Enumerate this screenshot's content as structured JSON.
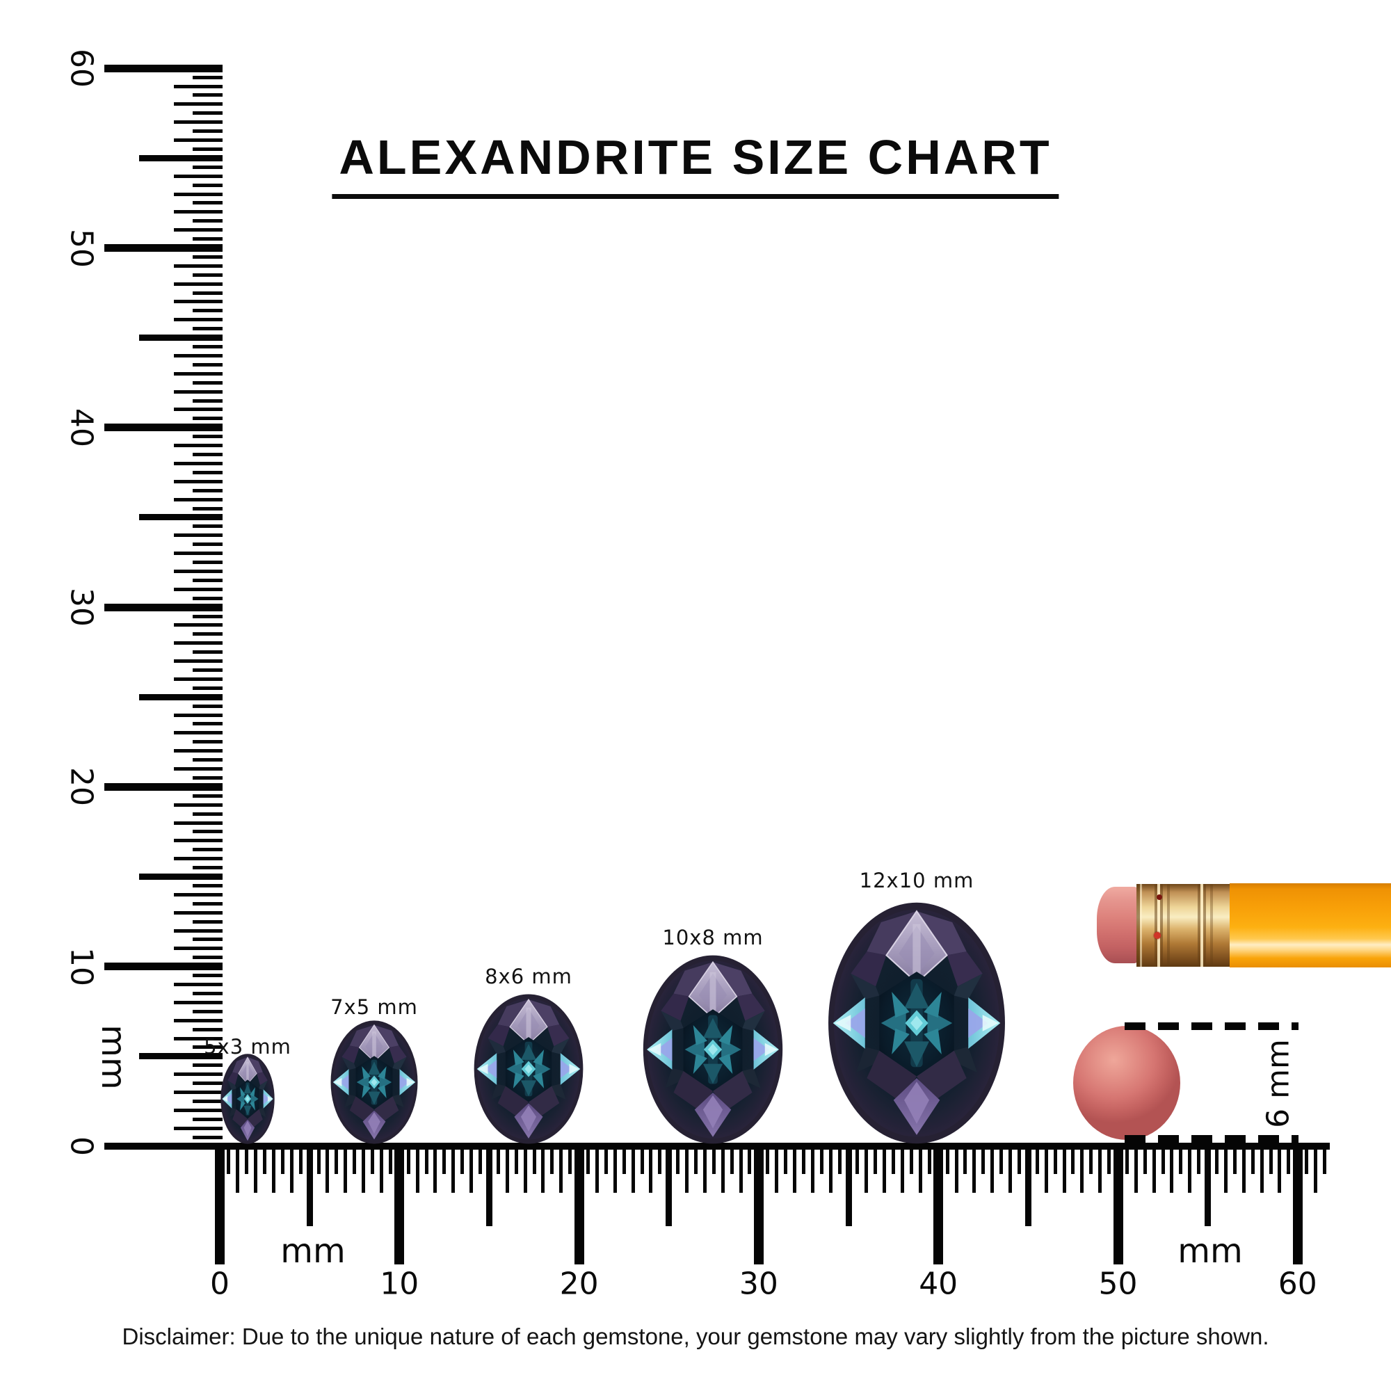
{
  "title": "ALEXANDRITE SIZE CHART",
  "gems": [
    {
      "label": "5x3 mm",
      "width_mm": 3,
      "height_mm": 5
    },
    {
      "label": "7x5 mm",
      "width_mm": 5,
      "height_mm": 7
    },
    {
      "label": "8x6 mm",
      "width_mm": 6,
      "height_mm": 8
    },
    {
      "label": "10x8 mm",
      "width_mm": 8,
      "height_mm": 10
    },
    {
      "label": "12x10 mm",
      "width_mm": 10,
      "height_mm": 12
    }
  ],
  "rulers": {
    "unit_label": "mm",
    "vertical": {
      "tick_labels": [
        "60",
        "50",
        "40",
        "30",
        "20",
        "10",
        "0"
      ],
      "range_mm": [
        0,
        60
      ]
    },
    "horizontal": {
      "tick_labels": [
        "0",
        "10",
        "20",
        "30",
        "40",
        "50",
        "60"
      ],
      "range_mm": [
        0,
        60
      ]
    }
  },
  "reference": {
    "disc_label": "6 mm"
  },
  "disclaimer": "Disclaimer: Due to the unique nature of each gemstone, your gemstone may vary slightly from the picture shown.",
  "colors": {
    "ink": "#050505",
    "pencil_body": "#f9a40a",
    "pencil_ferrule": "#ddb46e",
    "eraser_pink": "#d06f6d",
    "disc_pink": "#d67672",
    "gem_dark_table": "#0a1b29",
    "gem_lavender": "#a79dbd",
    "gem_cyan": "#63ccd7",
    "gem_purple": "#6f5c92"
  }
}
